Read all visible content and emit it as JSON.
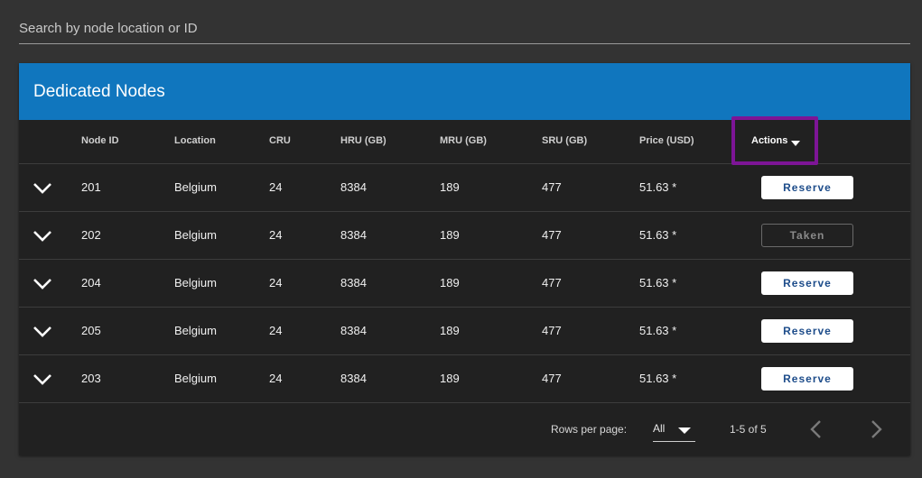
{
  "search": {
    "placeholder": "Search by node location or ID",
    "value": ""
  },
  "card": {
    "title": "Dedicated Nodes"
  },
  "table": {
    "columns": {
      "node_id": "Node ID",
      "location": "Location",
      "cru": "CRU",
      "hru": "HRU (GB)",
      "mru": "MRU (GB)",
      "sru": "SRU (GB)",
      "price": "Price (USD)",
      "actions": "Actions"
    },
    "rows": [
      {
        "node_id": "201",
        "location": "Belgium",
        "cru": "24",
        "hru": "8384",
        "mru": "189",
        "sru": "477",
        "price": "51.63 *",
        "action": "Reserve",
        "action_state": "available"
      },
      {
        "node_id": "202",
        "location": "Belgium",
        "cru": "24",
        "hru": "8384",
        "mru": "189",
        "sru": "477",
        "price": "51.63 *",
        "action": "Taken",
        "action_state": "taken"
      },
      {
        "node_id": "204",
        "location": "Belgium",
        "cru": "24",
        "hru": "8384",
        "mru": "189",
        "sru": "477",
        "price": "51.63 *",
        "action": "Reserve",
        "action_state": "available"
      },
      {
        "node_id": "205",
        "location": "Belgium",
        "cru": "24",
        "hru": "8384",
        "mru": "189",
        "sru": "477",
        "price": "51.63 *",
        "action": "Reserve",
        "action_state": "available"
      },
      {
        "node_id": "203",
        "location": "Belgium",
        "cru": "24",
        "hru": "8384",
        "mru": "189",
        "sru": "477",
        "price": "51.63 *",
        "action": "Reserve",
        "action_state": "available"
      }
    ]
  },
  "footer": {
    "rows_per_page_label": "Rows per page:",
    "rows_per_page_value": "All",
    "range_text": "1-5 of 5"
  },
  "icons": {
    "expand": "chevron-down-icon",
    "sort": "sort-down-icon",
    "select": "caret-down-icon",
    "prev": "chevron-left-icon",
    "next": "chevron-right-icon"
  },
  "colors": {
    "background": "#333333",
    "card": "#212121",
    "header": "#1076be",
    "highlight": "#7d1596",
    "reserve_text": "#1d4c8a"
  }
}
